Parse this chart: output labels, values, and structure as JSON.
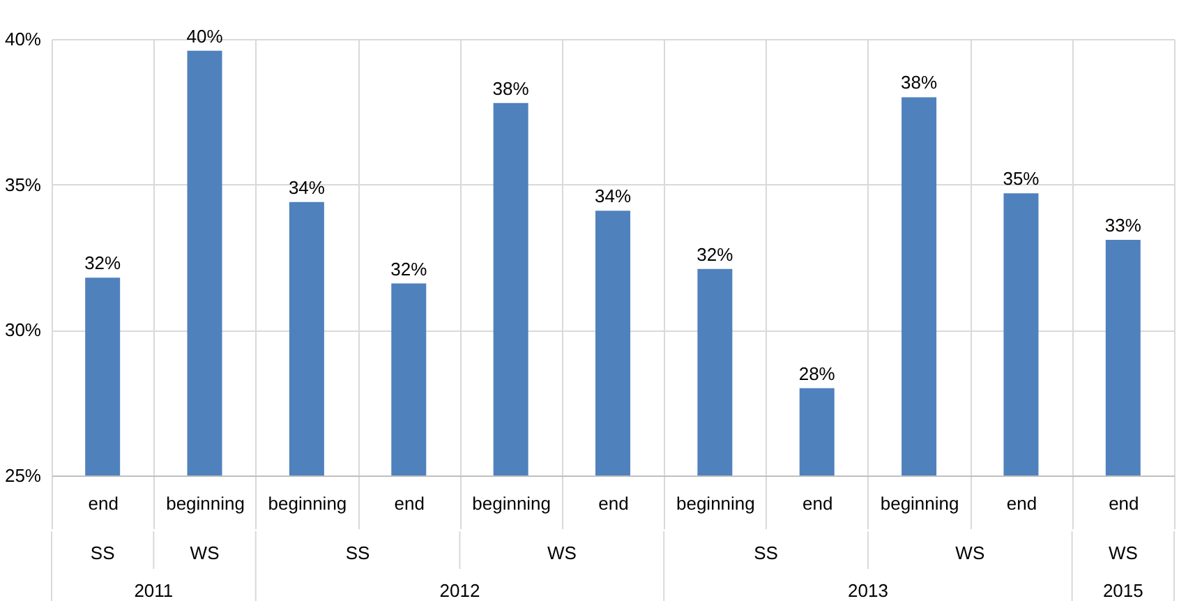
{
  "chart_data": {
    "type": "bar",
    "categories": [
      "end",
      "beginning",
      "beginning",
      "end",
      "beginning",
      "end",
      "beginning",
      "end",
      "beginning",
      "end",
      "end"
    ],
    "values": [
      31.8,
      39.6,
      34.4,
      31.6,
      37.8,
      34.1,
      32.1,
      28.0,
      38.0,
      34.7,
      33.1
    ],
    "value_labels": [
      "32%",
      "40%",
      "34%",
      "32%",
      "38%",
      "34%",
      "32%",
      "28%",
      "38%",
      "35%",
      "33%"
    ],
    "color": "#4f81bd",
    "ylim": [
      25,
      40
    ],
    "yticks": [
      {
        "value": 25,
        "label": "25%"
      },
      {
        "value": 30,
        "label": "30%"
      },
      {
        "value": 35,
        "label": "35%"
      },
      {
        "value": 40,
        "label": "40%"
      }
    ],
    "grid": "y",
    "annotations": [
      "SS",
      "WS",
      "SS",
      "WS",
      "SS",
      "WS",
      "WS",
      "2011",
      "2012",
      "2013",
      "2015"
    ]
  }
}
